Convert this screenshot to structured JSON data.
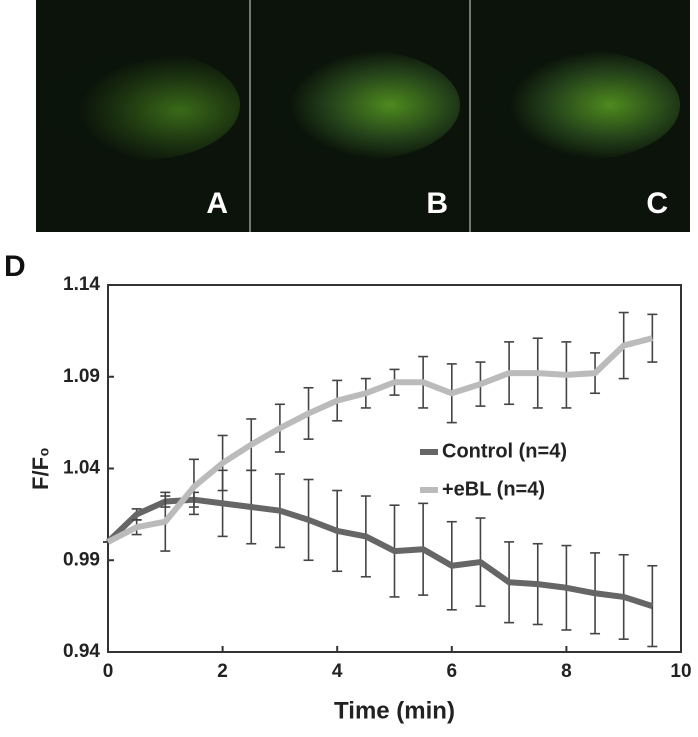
{
  "images": {
    "labels": [
      "A",
      "B",
      "C"
    ]
  },
  "chart_data": {
    "type": "line",
    "label": "D",
    "xlabel": "Time (min)",
    "ylabel": "F/F₀",
    "x": [
      0,
      0.5,
      1,
      1.5,
      2,
      2.5,
      3,
      3.5,
      4,
      4.5,
      5,
      5.5,
      6,
      6.5,
      7,
      7.5,
      8,
      8.5,
      9,
      9.5
    ],
    "series": [
      {
        "name": "Control (n=4)",
        "color": "#666666",
        "values": [
          1.0,
          1.015,
          1.022,
          1.023,
          1.021,
          1.019,
          1.017,
          1.012,
          1.006,
          1.003,
          0.995,
          0.996,
          0.987,
          0.989,
          0.978,
          0.977,
          0.975,
          0.972,
          0.97,
          0.965
        ],
        "errors": [
          0,
          0.003,
          0.003,
          0.004,
          0.018,
          0.02,
          0.02,
          0.022,
          0.022,
          0.022,
          0.025,
          0.025,
          0.024,
          0.024,
          0.022,
          0.022,
          0.023,
          0.022,
          0.023,
          0.022
        ]
      },
      {
        "name": "+eBL (n=4)",
        "color": "#bbbbbb",
        "values": [
          1.0,
          1.008,
          1.011,
          1.03,
          1.043,
          1.053,
          1.062,
          1.07,
          1.077,
          1.081,
          1.087,
          1.087,
          1.081,
          1.086,
          1.092,
          1.092,
          1.091,
          1.092,
          1.107,
          1.111
        ],
        "errors": [
          0,
          0.004,
          0.016,
          0.015,
          0.015,
          0.014,
          0.013,
          0.014,
          0.011,
          0.008,
          0.007,
          0.014,
          0.016,
          0.012,
          0.017,
          0.019,
          0.018,
          0.011,
          0.018,
          0.013
        ]
      }
    ],
    "xlim": [
      0,
      10
    ],
    "xticks": [
      0,
      2,
      4,
      6,
      8,
      10
    ],
    "ylim": [
      0.94,
      1.14
    ],
    "yticks": [
      0.94,
      0.99,
      1.04,
      1.09,
      1.14
    ],
    "legend": "right"
  }
}
